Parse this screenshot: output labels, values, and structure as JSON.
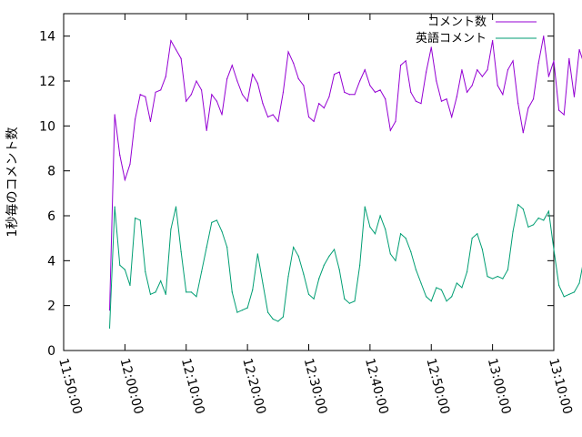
{
  "chart_data": {
    "type": "line",
    "title": "",
    "xlabel": "",
    "ylabel": "1秒毎のコメント数",
    "xlim": [
      "11:50:00",
      "13:10:00"
    ],
    "ylim": [
      0,
      15
    ],
    "x_ticks": [
      "11:50:00",
      "12:00:00",
      "12:10:00",
      "12:20:00",
      "12:30:00",
      "12:40:00",
      "12:50:00",
      "13:00:00",
      "13:10:00"
    ],
    "y_ticks": [
      0,
      2,
      4,
      6,
      8,
      10,
      12,
      14
    ],
    "grid": false,
    "legend_position": "top-right",
    "x_interval_seconds": 50,
    "series": [
      {
        "name": "コメント数",
        "color": "#9400d3",
        "x_start": "11:57:30",
        "values": [
          1.8,
          10.5,
          8.7,
          7.6,
          8.3,
          10.3,
          11.4,
          11.3,
          10.2,
          11.5,
          11.6,
          12.2,
          13.8,
          13.4,
          13.0,
          11.1,
          11.4,
          12.0,
          11.6,
          9.8,
          11.4,
          11.1,
          10.5,
          12.1,
          12.7,
          12.0,
          11.4,
          11.1,
          12.3,
          11.9,
          11.0,
          10.4,
          10.5,
          10.2,
          11.5,
          13.3,
          12.8,
          12.1,
          11.8,
          10.4,
          10.2,
          11.0,
          10.8,
          11.3,
          12.3,
          12.4,
          11.5,
          11.4,
          11.4,
          12.0,
          12.5,
          11.8,
          11.5,
          11.6,
          11.2,
          9.8,
          10.2,
          12.7,
          12.9,
          11.5,
          11.1,
          11.0,
          12.4,
          13.5,
          12.0,
          11.1,
          11.2,
          10.4,
          11.3,
          12.5,
          11.5,
          11.8,
          12.5,
          12.2,
          12.5,
          13.8,
          11.8,
          11.4,
          12.5,
          12.9,
          11.0,
          9.7,
          10.8,
          11.2,
          12.8,
          14.0,
          12.2,
          12.9,
          10.7,
          10.5,
          13.0,
          11.3,
          13.4,
          12.7,
          10.8,
          10.5,
          13.0
        ]
      },
      {
        "name": "英語コメント",
        "color": "#009e73",
        "x_start": "11:57:30",
        "values": [
          1.0,
          6.4,
          3.8,
          3.6,
          2.9,
          5.9,
          5.8,
          3.5,
          2.5,
          2.6,
          3.1,
          2.5,
          5.4,
          6.4,
          4.4,
          2.6,
          2.6,
          2.4,
          3.5,
          4.6,
          5.7,
          5.8,
          5.3,
          4.6,
          2.6,
          1.7,
          1.8,
          1.9,
          2.7,
          4.3,
          3.0,
          1.7,
          1.4,
          1.3,
          1.5,
          3.3,
          4.6,
          4.2,
          3.4,
          2.5,
          2.3,
          3.2,
          3.8,
          4.2,
          4.5,
          3.6,
          2.3,
          2.1,
          2.2,
          3.8,
          6.4,
          5.5,
          5.2,
          6.0,
          5.4,
          4.3,
          4.0,
          5.2,
          5.0,
          4.4,
          3.6,
          3.0,
          2.4,
          2.2,
          2.8,
          2.7,
          2.2,
          2.4,
          3.0,
          2.8,
          3.5,
          5.0,
          5.2,
          4.5,
          3.3,
          3.2,
          3.3,
          3.2,
          3.6,
          5.3,
          6.5,
          6.3,
          5.5,
          5.6,
          5.9,
          5.8,
          6.2,
          4.5,
          2.9,
          2.4,
          2.5,
          2.6,
          3.0,
          4.2,
          5.6,
          4.6,
          4.3,
          4.3,
          2.0
        ]
      }
    ]
  }
}
